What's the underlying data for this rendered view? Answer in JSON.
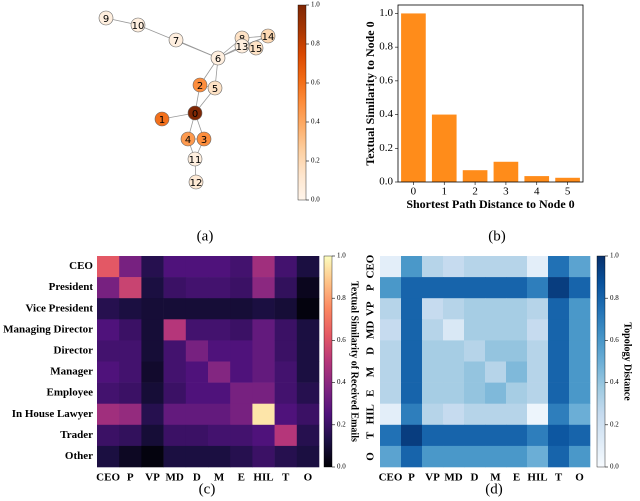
{
  "chart_data": [
    {
      "type": "network",
      "label": "(a)",
      "nodes": {
        "labels": [
          "0",
          "1",
          "2",
          "3",
          "4",
          "5",
          "6",
          "7",
          "8",
          "9",
          "10",
          "11",
          "12",
          "13",
          "14",
          "15"
        ],
        "values": [
          1.0,
          0.6,
          0.5,
          0.5,
          0.45,
          0.15,
          0.05,
          0.05,
          0.15,
          0.05,
          0.05,
          0.05,
          0.1,
          0.05,
          0.2,
          0.15
        ]
      },
      "edges": [
        [
          9,
          10
        ],
        [
          10,
          6
        ],
        [
          7,
          6
        ],
        [
          6,
          8
        ],
        [
          6,
          13
        ],
        [
          6,
          14
        ],
        [
          8,
          13
        ],
        [
          8,
          14
        ],
        [
          8,
          15
        ],
        [
          13,
          15
        ],
        [
          13,
          14
        ],
        [
          6,
          5
        ],
        [
          6,
          2
        ],
        [
          2,
          5
        ],
        [
          5,
          0
        ],
        [
          2,
          0
        ],
        [
          1,
          0
        ],
        [
          0,
          4
        ],
        [
          0,
          3
        ],
        [
          4,
          3
        ],
        [
          4,
          11
        ],
        [
          3,
          11
        ],
        [
          11,
          12
        ]
      ],
      "colormap": "Oranges",
      "clim": [
        0,
        1
      ],
      "cticks": [
        {
          "value": 0,
          "label": "0.0"
        },
        {
          "value": 0.2,
          "label": "0.2"
        },
        {
          "value": 0.4,
          "label": "0.4"
        },
        {
          "value": 0.6,
          "label": "0.6"
        },
        {
          "value": 0.8,
          "label": "0.8"
        },
        {
          "value": 1,
          "label": "1.0"
        }
      ]
    },
    {
      "type": "bar",
      "label": "(b)",
      "x_label": "Shortest Path Distance to Node 0",
      "y_label": "Textual Similarity to Node 0",
      "categories": [
        "0",
        "1",
        "2",
        "3",
        "4",
        "5"
      ],
      "values": [
        1.0,
        0.4,
        0.07,
        0.12,
        0.035,
        0.025
      ],
      "color": "#ff8c1a",
      "ylim": [
        0,
        1.05
      ],
      "yticks": [
        {
          "value": 0,
          "label": "0.0"
        },
        {
          "value": 0.2,
          "label": "0.2"
        },
        {
          "value": 0.4,
          "label": "0.4"
        },
        {
          "value": 0.6,
          "label": "0.6"
        },
        {
          "value": 0.8,
          "label": "0.8"
        },
        {
          "value": 1,
          "label": "1.0"
        }
      ]
    },
    {
      "type": "heatmap",
      "label": "(c)",
      "rows": [
        "CEO",
        "President",
        "Vice President",
        "Managing Director",
        "Director",
        "Manager",
        "Employee",
        "In House Lawyer",
        "Trader",
        "Other"
      ],
      "columns": [
        "CEO",
        "P",
        "VP",
        "MD",
        "D",
        "M",
        "E",
        "HIL",
        "T",
        "O"
      ],
      "values": [
        [
          0.62,
          0.35,
          0.15,
          0.25,
          0.25,
          0.25,
          0.22,
          0.45,
          0.22,
          0.12
        ],
        [
          0.35,
          0.55,
          0.12,
          0.2,
          0.22,
          0.22,
          0.2,
          0.4,
          0.18,
          0.05
        ],
        [
          0.15,
          0.12,
          0.1,
          0.1,
          0.1,
          0.1,
          0.1,
          0.12,
          0.1,
          0.02
        ],
        [
          0.25,
          0.2,
          0.1,
          0.5,
          0.22,
          0.22,
          0.2,
          0.3,
          0.2,
          0.12
        ],
        [
          0.22,
          0.22,
          0.1,
          0.22,
          0.35,
          0.25,
          0.25,
          0.3,
          0.2,
          0.12
        ],
        [
          0.25,
          0.22,
          0.08,
          0.22,
          0.25,
          0.38,
          0.25,
          0.3,
          0.22,
          0.12
        ],
        [
          0.22,
          0.2,
          0.1,
          0.2,
          0.25,
          0.25,
          0.35,
          0.35,
          0.22,
          0.15
        ],
        [
          0.45,
          0.42,
          0.15,
          0.3,
          0.3,
          0.3,
          0.35,
          0.95,
          0.25,
          0.2
        ],
        [
          0.2,
          0.18,
          0.1,
          0.2,
          0.2,
          0.22,
          0.22,
          0.25,
          0.5,
          0.15
        ],
        [
          0.12,
          0.06,
          0.02,
          0.12,
          0.12,
          0.12,
          0.15,
          0.2,
          0.15,
          0.12
        ]
      ],
      "colormap": "magma",
      "clim": [
        0,
        1
      ],
      "colorbar_label": "Textual Similarity of Received Emails",
      "cticks": [
        {
          "value": 0,
          "label": "0.0"
        },
        {
          "value": 0.2,
          "label": "0.2"
        },
        {
          "value": 0.4,
          "label": "0.4"
        },
        {
          "value": 0.6,
          "label": "0.6"
        },
        {
          "value": 0.8,
          "label": "0.8"
        },
        {
          "value": 1,
          "label": "1.0"
        }
      ]
    },
    {
      "type": "heatmap",
      "label": "(d)",
      "rows": [
        "CEO",
        "P",
        "VP",
        "MD",
        "D",
        "M",
        "E",
        "HIL",
        "T",
        "O"
      ],
      "columns": [
        "CEO",
        "P",
        "VP",
        "MD",
        "D",
        "M",
        "E",
        "HIL",
        "T",
        "O"
      ],
      "values": [
        [
          0.1,
          0.6,
          0.3,
          0.25,
          0.3,
          0.3,
          0.3,
          0.1,
          0.75,
          0.55
        ],
        [
          0.6,
          0.8,
          0.8,
          0.8,
          0.8,
          0.8,
          0.8,
          0.7,
          0.95,
          0.8
        ],
        [
          0.3,
          0.8,
          0.25,
          0.3,
          0.35,
          0.35,
          0.35,
          0.3,
          0.8,
          0.6
        ],
        [
          0.25,
          0.8,
          0.3,
          0.15,
          0.35,
          0.35,
          0.35,
          0.25,
          0.8,
          0.6
        ],
        [
          0.3,
          0.8,
          0.35,
          0.35,
          0.3,
          0.4,
          0.4,
          0.3,
          0.8,
          0.6
        ],
        [
          0.3,
          0.8,
          0.35,
          0.35,
          0.4,
          0.3,
          0.45,
          0.3,
          0.8,
          0.6
        ],
        [
          0.3,
          0.8,
          0.35,
          0.35,
          0.4,
          0.45,
          0.35,
          0.3,
          0.8,
          0.6
        ],
        [
          0.1,
          0.7,
          0.3,
          0.25,
          0.3,
          0.3,
          0.3,
          0.05,
          0.7,
          0.5
        ],
        [
          0.75,
          0.95,
          0.8,
          0.8,
          0.8,
          0.8,
          0.8,
          0.7,
          0.85,
          0.8
        ],
        [
          0.55,
          0.8,
          0.6,
          0.6,
          0.6,
          0.6,
          0.6,
          0.5,
          0.8,
          0.6
        ]
      ],
      "colormap": "Blues",
      "clim": [
        0,
        1
      ],
      "colorbar_label": "Topology Distance",
      "cticks": [
        {
          "value": 0,
          "label": "0.0"
        },
        {
          "value": 0.2,
          "label": "0.2"
        },
        {
          "value": 0.4,
          "label": "0.4"
        },
        {
          "value": 0.6,
          "label": "0.6"
        },
        {
          "value": 0.8,
          "label": "0.8"
        },
        {
          "value": 1,
          "label": "1.0"
        }
      ]
    }
  ]
}
